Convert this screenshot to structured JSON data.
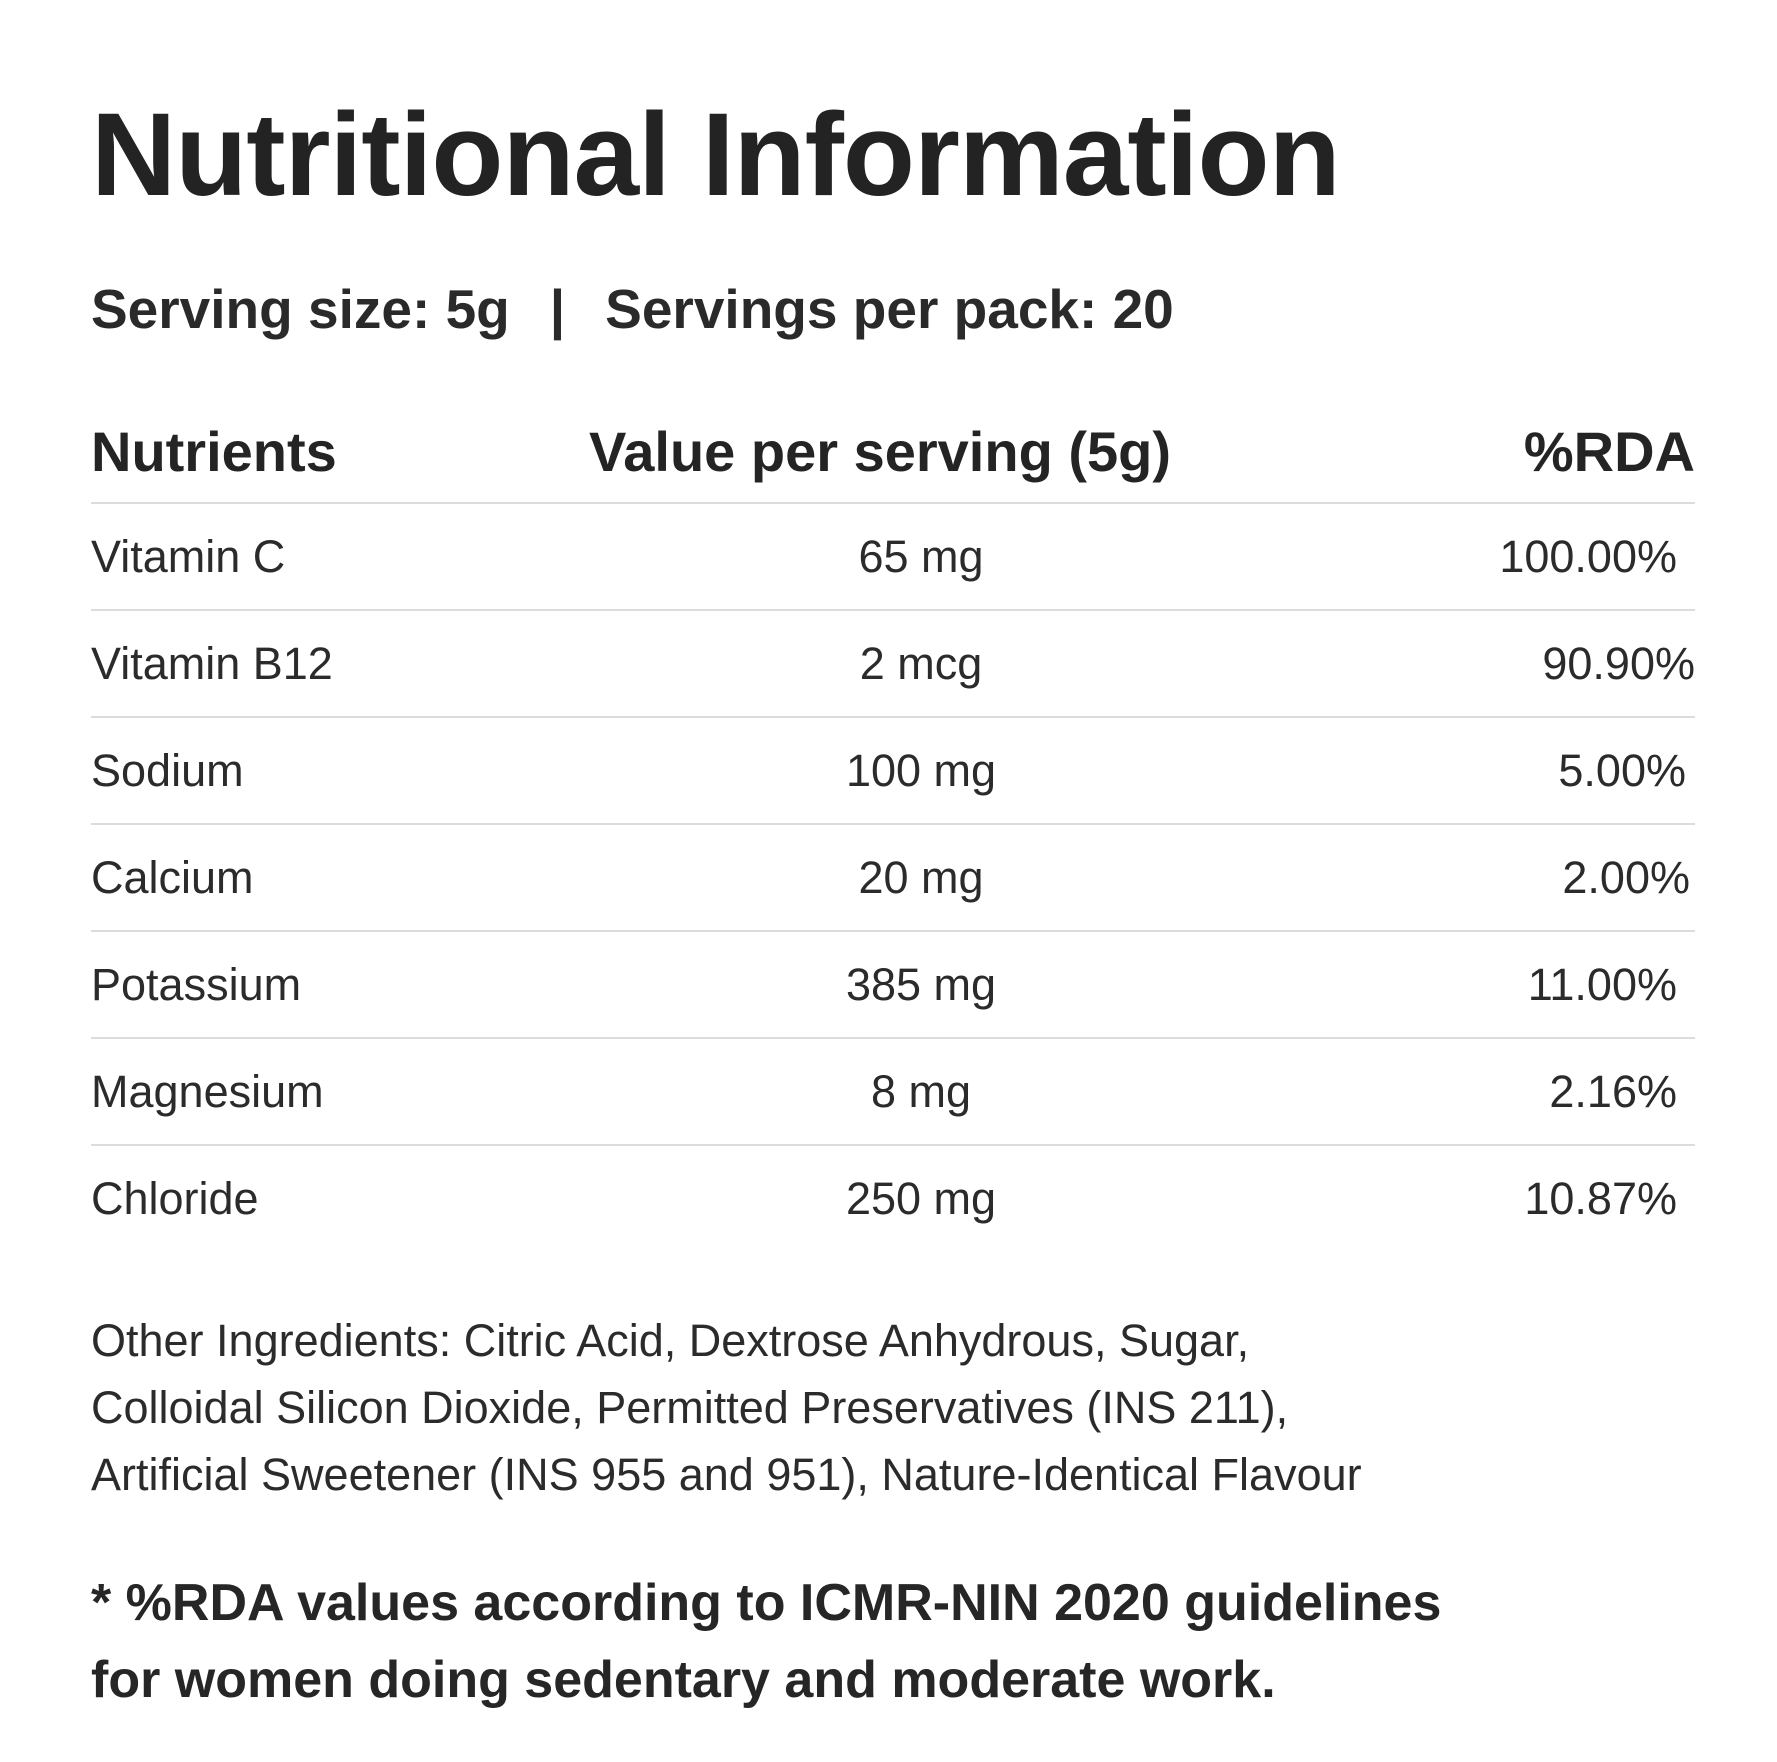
{
  "title": "Nutritional Information",
  "serving": {
    "size": "Serving size: 5g",
    "separator": "|",
    "per_pack": "Servings per pack: 20"
  },
  "table": {
    "headers": {
      "nutrient": "Nutrients",
      "value": "Value per serving (5g)",
      "rda": "%RDA"
    },
    "rows": [
      {
        "nutrient": "Vitamin C",
        "value": "65 mg",
        "rda": "100.00%"
      },
      {
        "nutrient": "Vitamin B12",
        "value": "2 mcg",
        "rda": "90.90%"
      },
      {
        "nutrient": "Sodium",
        "value": "100 mg",
        "rda": "5.00%"
      },
      {
        "nutrient": "Calcium",
        "value": "20 mg",
        "rda": "2.00%"
      },
      {
        "nutrient": "Potassium",
        "value": "385 mg",
        "rda": "11.00%"
      },
      {
        "nutrient": "Magnesium",
        "value": "8 mg",
        "rda": "2.16%"
      },
      {
        "nutrient": "Chloride",
        "value": "250 mg",
        "rda": "10.87%"
      }
    ]
  },
  "ingredients": {
    "line1": "Other Ingredients: Citric Acid, Dextrose Anhydrous, Sugar,",
    "line2": "Colloidal Silicon Dioxide, Permitted Preservatives (INS 211),",
    "line3": "Artificial Sweetener (INS 955 and 951), Nature-Identical Flavour"
  },
  "footnote": {
    "line1": "* %RDA values according to ICMR-NIN 2020 guidelines",
    "line2": "for women doing sedentary and moderate work."
  }
}
